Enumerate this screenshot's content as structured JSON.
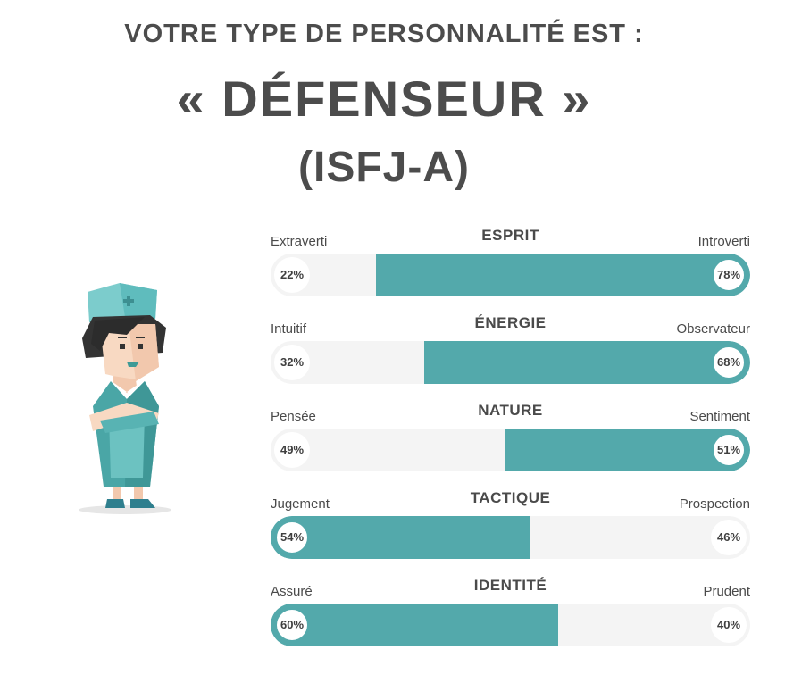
{
  "header": {
    "pre_title": "VOTRE TYPE DE PERSONNALITÉ EST :",
    "type_name": "« DÉFENSEUR »",
    "type_code": "(ISFJ-A)"
  },
  "avatar": {
    "icon": "nurse-avatar-icon"
  },
  "colors": {
    "accent": "#53a9ab",
    "track": "#f4f4f4",
    "text": "#4a4a4a"
  },
  "scales": [
    {
      "title": "ESPRIT",
      "left_label": "Extraverti",
      "right_label": "Introverti",
      "left_percent": "22%",
      "right_percent": "78%",
      "left_value": 22,
      "right_value": 78,
      "dominant": "right"
    },
    {
      "title": "ÉNERGIE",
      "left_label": "Intuitif",
      "right_label": "Observateur",
      "left_percent": "32%",
      "right_percent": "68%",
      "left_value": 32,
      "right_value": 68,
      "dominant": "right"
    },
    {
      "title": "NATURE",
      "left_label": "Pensée",
      "right_label": "Sentiment",
      "left_percent": "49%",
      "right_percent": "51%",
      "left_value": 49,
      "right_value": 51,
      "dominant": "right"
    },
    {
      "title": "TACTIQUE",
      "left_label": "Jugement",
      "right_label": "Prospection",
      "left_percent": "54%",
      "right_percent": "46%",
      "left_value": 54,
      "right_value": 46,
      "dominant": "left"
    },
    {
      "title": "IDENTITÉ",
      "left_label": "Assuré",
      "right_label": "Prudent",
      "left_percent": "60%",
      "right_percent": "40%",
      "left_value": 60,
      "right_value": 40,
      "dominant": "left"
    }
  ]
}
